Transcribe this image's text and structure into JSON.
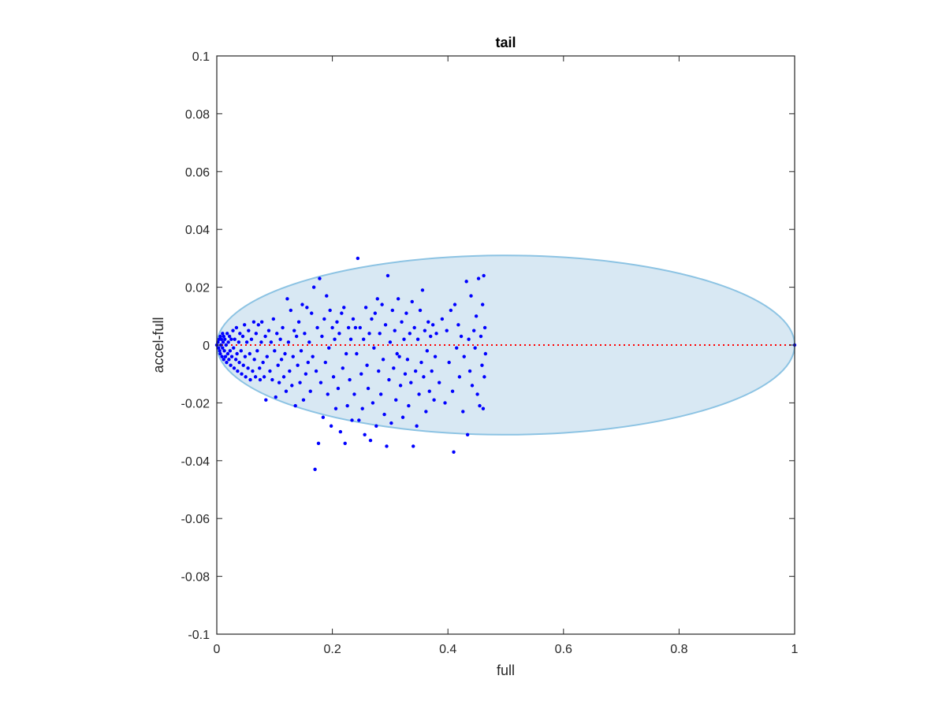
{
  "chart_data": {
    "type": "scatter",
    "title": "tail",
    "xlabel": "full",
    "ylabel": "accel-full",
    "xlim": [
      0,
      1
    ],
    "ylim": [
      -0.1,
      0.1
    ],
    "x_ticks": [
      "0",
      "0.2",
      "0.4",
      "0.6",
      "0.8",
      "1"
    ],
    "y_ticks": [
      "-0.1",
      "-0.08",
      "-0.06",
      "-0.04",
      "-0.02",
      "0",
      "0.02",
      "0.04",
      "0.06",
      "0.08",
      "0.1"
    ],
    "grid": false,
    "legend": "none",
    "marker_color": "#0000ff",
    "ellipse": {
      "center": [
        0.5,
        0
      ],
      "half_width": 0.5,
      "half_height": 0.031,
      "fill": "#d8e8f3",
      "edge": "#8cc3e3"
    },
    "reference_line": {
      "y": 0,
      "x_range": [
        0,
        1
      ],
      "color": "#ff0000",
      "style": "dotted"
    },
    "points": [
      [
        0.0,
        0.0
      ],
      [
        0.002,
        0.001
      ],
      [
        0.003,
        -0.001
      ],
      [
        0.004,
        0.002
      ],
      [
        0.005,
        -0.002
      ],
      [
        0.006,
        0.003
      ],
      [
        0.006,
        -0.003
      ],
      [
        0.007,
        0.0
      ],
      [
        0.008,
        0.002
      ],
      [
        0.009,
        -0.004
      ],
      [
        0.01,
        0.004
      ],
      [
        0.01,
        -0.001
      ],
      [
        0.011,
        0.001
      ],
      [
        0.012,
        -0.005
      ],
      [
        0.012,
        0.003
      ],
      [
        0.013,
        -0.002
      ],
      [
        0.014,
        0.002
      ],
      [
        0.015,
        -0.004
      ],
      [
        0.016,
        0.0
      ],
      [
        0.017,
        -0.006
      ],
      [
        0.018,
        0.004
      ],
      [
        0.019,
        -0.003
      ],
      [
        0.02,
        0.001
      ],
      [
        0.021,
        -0.005
      ],
      [
        0.022,
        0.003
      ],
      [
        0.023,
        -0.002
      ],
      [
        0.024,
        -0.007
      ],
      [
        0.025,
        0.002
      ],
      [
        0.026,
        -0.004
      ],
      [
        0.028,
        0.005
      ],
      [
        0.029,
        -0.001
      ],
      [
        0.03,
        -0.008
      ],
      [
        0.031,
        0.002
      ],
      [
        0.033,
        -0.005
      ],
      [
        0.034,
        0.006
      ],
      [
        0.035,
        -0.003
      ],
      [
        0.036,
        -0.009
      ],
      [
        0.038,
        0.001
      ],
      [
        0.039,
        -0.006
      ],
      [
        0.04,
        0.004
      ],
      [
        0.042,
        -0.002
      ],
      [
        0.043,
        -0.01
      ],
      [
        0.045,
        0.003
      ],
      [
        0.046,
        -0.007
      ],
      [
        0.048,
        0.007
      ],
      [
        0.049,
        -0.004
      ],
      [
        0.05,
        -0.011
      ],
      [
        0.052,
        0.001
      ],
      [
        0.054,
        -0.008
      ],
      [
        0.055,
        0.005
      ],
      [
        0.057,
        -0.003
      ],
      [
        0.058,
        -0.012
      ],
      [
        0.06,
        0.002
      ],
      [
        0.062,
        -0.009
      ],
      [
        0.064,
        0.008
      ],
      [
        0.065,
        -0.005
      ],
      [
        0.067,
        -0.011
      ],
      [
        0.068,
        0.004
      ],
      [
        0.07,
        -0.002
      ],
      [
        0.072,
        0.007
      ],
      [
        0.074,
        -0.008
      ],
      [
        0.075,
        -0.012
      ],
      [
        0.077,
        0.001
      ],
      [
        0.078,
        0.008
      ],
      [
        0.08,
        -0.006
      ],
      [
        0.082,
        -0.011
      ],
      [
        0.084,
        0.003
      ],
      [
        0.085,
        -0.019
      ],
      [
        0.087,
        -0.004
      ],
      [
        0.09,
        0.005
      ],
      [
        0.092,
        -0.009
      ],
      [
        0.094,
        0.001
      ],
      [
        0.096,
        -0.012
      ],
      [
        0.098,
        0.009
      ],
      [
        0.1,
        -0.002
      ],
      [
        0.102,
        -0.018
      ],
      [
        0.104,
        0.004
      ],
      [
        0.106,
        -0.007
      ],
      [
        0.108,
        -0.013
      ],
      [
        0.11,
        0.002
      ],
      [
        0.112,
        -0.005
      ],
      [
        0.114,
        0.006
      ],
      [
        0.116,
        -0.011
      ],
      [
        0.118,
        -0.003
      ],
      [
        0.12,
        -0.016
      ],
      [
        0.122,
        0.016
      ],
      [
        0.124,
        0.001
      ],
      [
        0.126,
        -0.009
      ],
      [
        0.128,
        0.012
      ],
      [
        0.13,
        -0.014
      ],
      [
        0.132,
        -0.004
      ],
      [
        0.134,
        0.005
      ],
      [
        0.136,
        -0.021
      ],
      [
        0.138,
        0.003
      ],
      [
        0.14,
        -0.007
      ],
      [
        0.142,
        0.008
      ],
      [
        0.144,
        -0.013
      ],
      [
        0.146,
        -0.002
      ],
      [
        0.148,
        0.014
      ],
      [
        0.15,
        -0.019
      ],
      [
        0.152,
        0.004
      ],
      [
        0.154,
        -0.01
      ],
      [
        0.156,
        0.013
      ],
      [
        0.158,
        -0.006
      ],
      [
        0.16,
        0.001
      ],
      [
        0.162,
        -0.016
      ],
      [
        0.164,
        0.011
      ],
      [
        0.166,
        -0.004
      ],
      [
        0.168,
        0.02
      ],
      [
        0.17,
        -0.043
      ],
      [
        0.172,
        -0.009
      ],
      [
        0.174,
        0.006
      ],
      [
        0.176,
        -0.034
      ],
      [
        0.178,
        0.023
      ],
      [
        0.18,
        -0.013
      ],
      [
        0.182,
        0.003
      ],
      [
        0.184,
        -0.025
      ],
      [
        0.186,
        0.009
      ],
      [
        0.188,
        -0.006
      ],
      [
        0.19,
        0.017
      ],
      [
        0.192,
        -0.017
      ],
      [
        0.194,
        -0.001
      ],
      [
        0.196,
        0.012
      ],
      [
        0.198,
        -0.028
      ],
      [
        0.2,
        0.006
      ],
      [
        0.202,
        -0.011
      ],
      [
        0.204,
        0.002
      ],
      [
        0.206,
        -0.022
      ],
      [
        0.208,
        0.008
      ],
      [
        0.21,
        -0.015
      ],
      [
        0.212,
        0.004
      ],
      [
        0.214,
        -0.03
      ],
      [
        0.216,
        0.011
      ],
      [
        0.218,
        -0.008
      ],
      [
        0.22,
        0.013
      ],
      [
        0.222,
        -0.034
      ],
      [
        0.224,
        -0.003
      ],
      [
        0.226,
        -0.021
      ],
      [
        0.228,
        0.006
      ],
      [
        0.23,
        -0.012
      ],
      [
        0.232,
        0.002
      ],
      [
        0.234,
        -0.026
      ],
      [
        0.236,
        0.009
      ],
      [
        0.238,
        -0.017
      ],
      [
        0.24,
        0.006
      ],
      [
        0.242,
        -0.003
      ],
      [
        0.244,
        0.03
      ],
      [
        0.246,
        -0.026
      ],
      [
        0.248,
        0.006
      ],
      [
        0.25,
        -0.01
      ],
      [
        0.252,
        -0.022
      ],
      [
        0.254,
        0.002
      ],
      [
        0.256,
        -0.031
      ],
      [
        0.258,
        0.013
      ],
      [
        0.26,
        -0.007
      ],
      [
        0.262,
        -0.015
      ],
      [
        0.264,
        0.004
      ],
      [
        0.266,
        -0.033
      ],
      [
        0.268,
        0.009
      ],
      [
        0.27,
        -0.02
      ],
      [
        0.272,
        -0.001
      ],
      [
        0.274,
        0.011
      ],
      [
        0.276,
        -0.028
      ],
      [
        0.278,
        0.016
      ],
      [
        0.28,
        -0.009
      ],
      [
        0.282,
        0.004
      ],
      [
        0.284,
        -0.017
      ],
      [
        0.286,
        0.014
      ],
      [
        0.288,
        -0.005
      ],
      [
        0.29,
        -0.024
      ],
      [
        0.292,
        0.007
      ],
      [
        0.294,
        -0.035
      ],
      [
        0.296,
        0.024
      ],
      [
        0.298,
        -0.012
      ],
      [
        0.3,
        0.001
      ],
      [
        0.302,
        -0.027
      ],
      [
        0.304,
        0.012
      ],
      [
        0.306,
        -0.008
      ],
      [
        0.308,
        0.005
      ],
      [
        0.31,
        -0.019
      ],
      [
        0.312,
        -0.003
      ],
      [
        0.314,
        0.016
      ],
      [
        0.316,
        -0.004
      ],
      [
        0.318,
        -0.014
      ],
      [
        0.32,
        0.008
      ],
      [
        0.322,
        -0.025
      ],
      [
        0.324,
        0.002
      ],
      [
        0.326,
        -0.01
      ],
      [
        0.328,
        0.011
      ],
      [
        0.33,
        -0.005
      ],
      [
        0.332,
        -0.021
      ],
      [
        0.334,
        0.004
      ],
      [
        0.336,
        -0.013
      ],
      [
        0.338,
        0.015
      ],
      [
        0.34,
        -0.035
      ],
      [
        0.342,
        0.006
      ],
      [
        0.344,
        -0.009
      ],
      [
        0.346,
        -0.028
      ],
      [
        0.348,
        0.002
      ],
      [
        0.35,
        -0.017
      ],
      [
        0.352,
        0.012
      ],
      [
        0.354,
        -0.006
      ],
      [
        0.356,
        0.019
      ],
      [
        0.358,
        -0.011
      ],
      [
        0.36,
        0.005
      ],
      [
        0.362,
        -0.023
      ],
      [
        0.364,
        -0.002
      ],
      [
        0.366,
        0.008
      ],
      [
        0.368,
        -0.016
      ],
      [
        0.37,
        0.003
      ],
      [
        0.372,
        -0.009
      ],
      [
        0.374,
        0.007
      ],
      [
        0.376,
        -0.019
      ],
      [
        0.378,
        -0.004
      ],
      [
        0.38,
        0.004
      ],
      [
        0.385,
        -0.013
      ],
      [
        0.39,
        0.009
      ],
      [
        0.395,
        -0.02
      ],
      [
        0.398,
        0.005
      ],
      [
        0.402,
        -0.006
      ],
      [
        0.405,
        0.012
      ],
      [
        0.408,
        -0.016
      ],
      [
        0.41,
        -0.037
      ],
      [
        0.412,
        0.014
      ],
      [
        0.415,
        -0.001
      ],
      [
        0.418,
        0.007
      ],
      [
        0.42,
        -0.011
      ],
      [
        0.423,
        0.003
      ],
      [
        0.426,
        -0.023
      ],
      [
        0.428,
        -0.004
      ],
      [
        0.432,
        0.022
      ],
      [
        0.434,
        -0.031
      ],
      [
        0.436,
        0.002
      ],
      [
        0.438,
        -0.009
      ],
      [
        0.44,
        0.017
      ],
      [
        0.442,
        -0.014
      ],
      [
        0.445,
        0.005
      ],
      [
        0.447,
        -0.001
      ],
      [
        0.449,
        0.01
      ],
      [
        0.451,
        -0.017
      ],
      [
        0.453,
        0.023
      ],
      [
        0.455,
        -0.021
      ],
      [
        0.457,
        0.003
      ],
      [
        0.459,
        -0.007
      ],
      [
        0.46,
        0.014
      ],
      [
        0.461,
        -0.022
      ],
      [
        0.462,
        0.024
      ],
      [
        0.463,
        -0.011
      ],
      [
        0.464,
        0.006
      ],
      [
        0.465,
        -0.003
      ],
      [
        1.0,
        0.0
      ]
    ]
  }
}
